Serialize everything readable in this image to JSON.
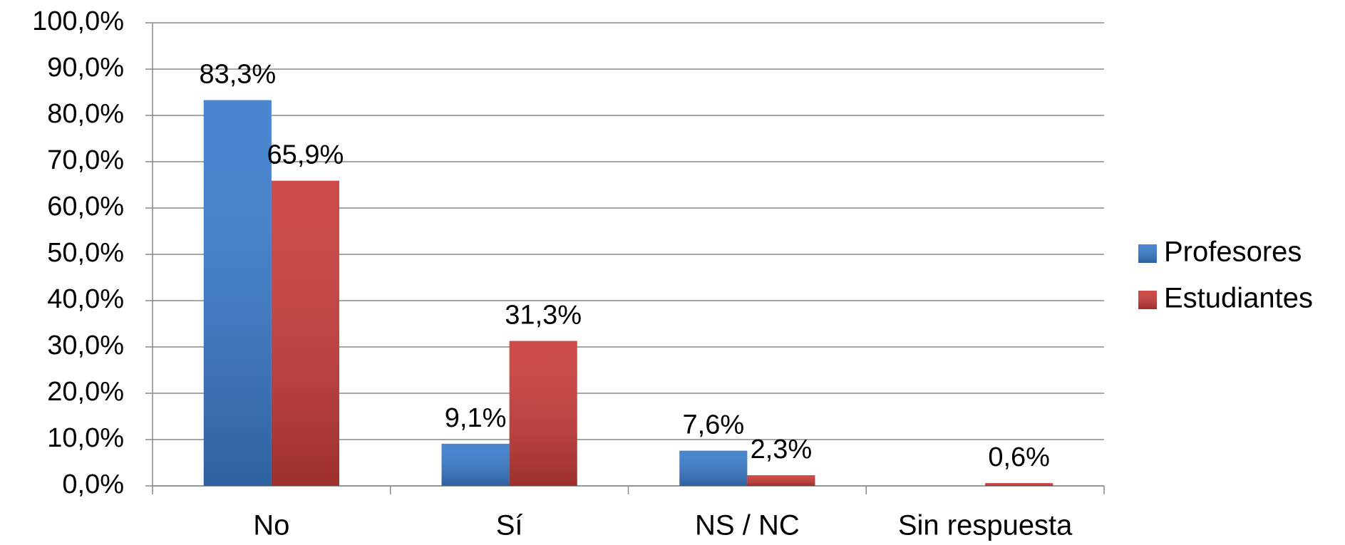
{
  "chart_data": {
    "type": "bar",
    "categories": [
      "No",
      "Sí",
      "NS / NC",
      "Sin respuesta"
    ],
    "series": [
      {
        "name": "Profesores",
        "color": "#3a7ccc",
        "values": [
          83.3,
          9.1,
          7.6,
          null
        ],
        "value_labels": [
          "83,3%",
          "9,1%",
          "7,6%",
          null
        ]
      },
      {
        "name": "Estudiantes",
        "color": "#c93c39",
        "values": [
          65.9,
          31.3,
          2.3,
          0.6
        ],
        "value_labels": [
          "65,9%",
          "31,3%",
          "2,3%",
          "0,6%"
        ]
      }
    ],
    "ylim": [
      0,
      100
    ],
    "yticks": [
      {
        "value": 0,
        "label": "0,0%"
      },
      {
        "value": 10,
        "label": "10,0%"
      },
      {
        "value": 20,
        "label": "20,0%"
      },
      {
        "value": 30,
        "label": "30,0%"
      },
      {
        "value": 40,
        "label": "40,0%"
      },
      {
        "value": 50,
        "label": "50,0%"
      },
      {
        "value": 60,
        "label": "60,0%"
      },
      {
        "value": 70,
        "label": "70,0%"
      },
      {
        "value": 80,
        "label": "80,0%"
      },
      {
        "value": 90,
        "label": "90,0%"
      },
      {
        "value": 100,
        "label": "100,0%"
      }
    ],
    "grid": true,
    "legend": "right"
  }
}
